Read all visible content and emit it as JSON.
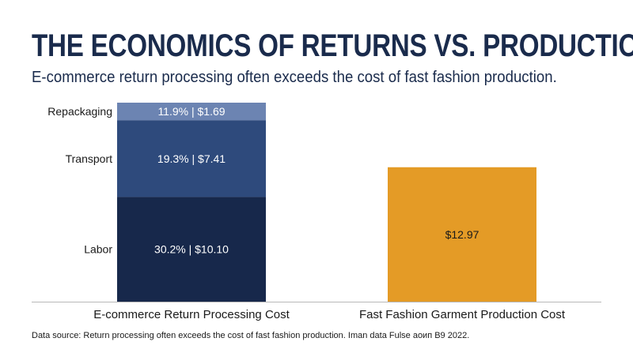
{
  "header": {
    "title": "THE ECONOMICS OF RETURNS VS. PRODUCTION",
    "subtitle": "E-commerce return processing often exceeds the cost of fast fashion production."
  },
  "footer": {
    "source": "Data source:  Return processing often exceeds the cost of fast fashion production. Iman data Fulse аоип B9 2022."
  },
  "colors": {
    "labor": "#17284b",
    "transport": "#2e4a7c",
    "repackaging": "#6c84b2",
    "production": "#e49b26",
    "axis": "#b8b8b8",
    "text": "#1a1a1a"
  },
  "chart_data": {
    "type": "bar",
    "stacked": true,
    "categories": [
      "E-commerce Return Processing Cost",
      "Fast Fashion Garment Production Cost"
    ],
    "series": [
      {
        "name": "Labor",
        "values": [
          10.1,
          null
        ],
        "labels": [
          "30.2% | $10.10",
          null
        ],
        "color": "#17284b"
      },
      {
        "name": "Transport",
        "values": [
          7.41,
          null
        ],
        "labels": [
          "19.3% | $7.41",
          null
        ],
        "color": "#2e4a7c"
      },
      {
        "name": "Repackaging",
        "values": [
          1.69,
          null
        ],
        "labels": [
          "11.9% | $1.69",
          null
        ],
        "color": "#6c84b2"
      },
      {
        "name": "",
        "values": [
          null,
          12.97
        ],
        "labels": [
          null,
          "$12.97"
        ],
        "color": "#e49b26"
      }
    ],
    "title": "",
    "xlabel": "",
    "ylabel": "",
    "grid": false,
    "legend": "none"
  }
}
